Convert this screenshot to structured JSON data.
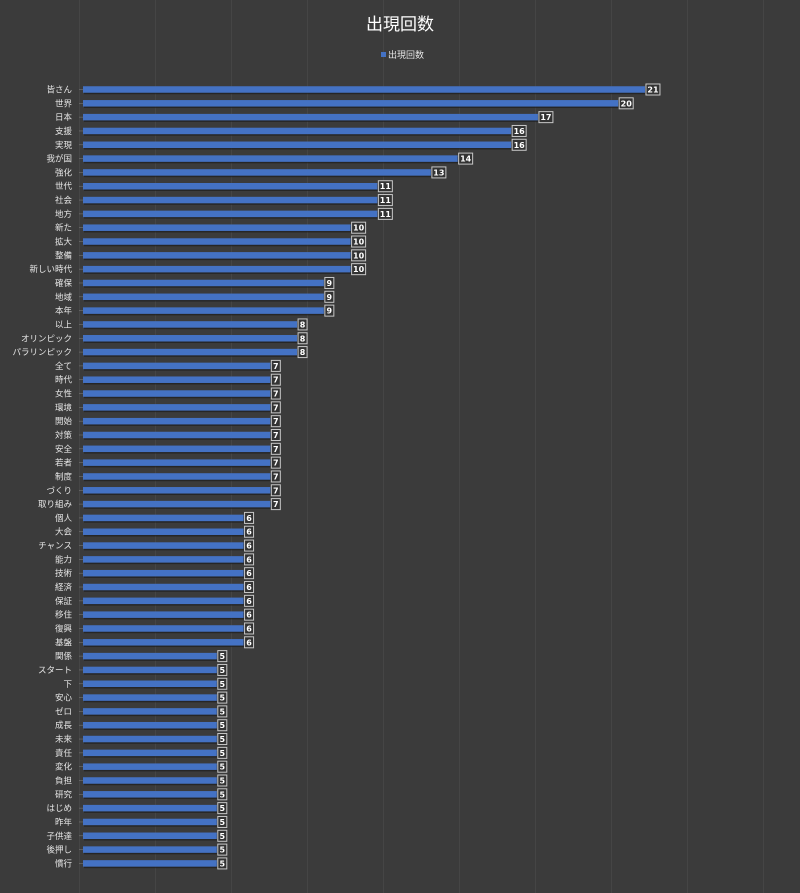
{
  "chart_data": {
    "type": "bar",
    "orientation": "horizontal",
    "title": "出現回数",
    "legend": {
      "label": "出現回数",
      "position": "top"
    },
    "xlim": [
      0,
      25
    ],
    "grid": true,
    "series_color": "#4472c4",
    "categories": [
      "皆さん",
      "世界",
      "日本",
      "支援",
      "実現",
      "我が国",
      "強化",
      "世代",
      "社会",
      "地方",
      "新た",
      "拡大",
      "整備",
      "新しい時代",
      "確保",
      "地域",
      "本年",
      "以上",
      "オリンピック",
      "パラリンピック",
      "全て",
      "時代",
      "女性",
      "環境",
      "開始",
      "対策",
      "安全",
      "若者",
      "制度",
      "づくり",
      "取り組み",
      "個人",
      "大会",
      "チャンス",
      "能力",
      "技術",
      "経済",
      "保証",
      "移住",
      "復興",
      "基盤",
      "関係",
      "スタート",
      "下",
      "安心",
      "ゼロ",
      "成長",
      "未来",
      "責任",
      "変化",
      "負担",
      "研究",
      "はじめ",
      "昨年",
      "子供達",
      "後押し",
      "慣行"
    ],
    "values": [
      21,
      20,
      17,
      16,
      16,
      14,
      13,
      11,
      11,
      11,
      10,
      10,
      10,
      10,
      9,
      9,
      9,
      8,
      8,
      8,
      7,
      7,
      7,
      7,
      7,
      7,
      7,
      7,
      7,
      7,
      7,
      6,
      6,
      6,
      6,
      6,
      6,
      6,
      6,
      6,
      6,
      5,
      5,
      5,
      5,
      5,
      5,
      5,
      5,
      5,
      5,
      5,
      5,
      5,
      5,
      5,
      5
    ]
  }
}
